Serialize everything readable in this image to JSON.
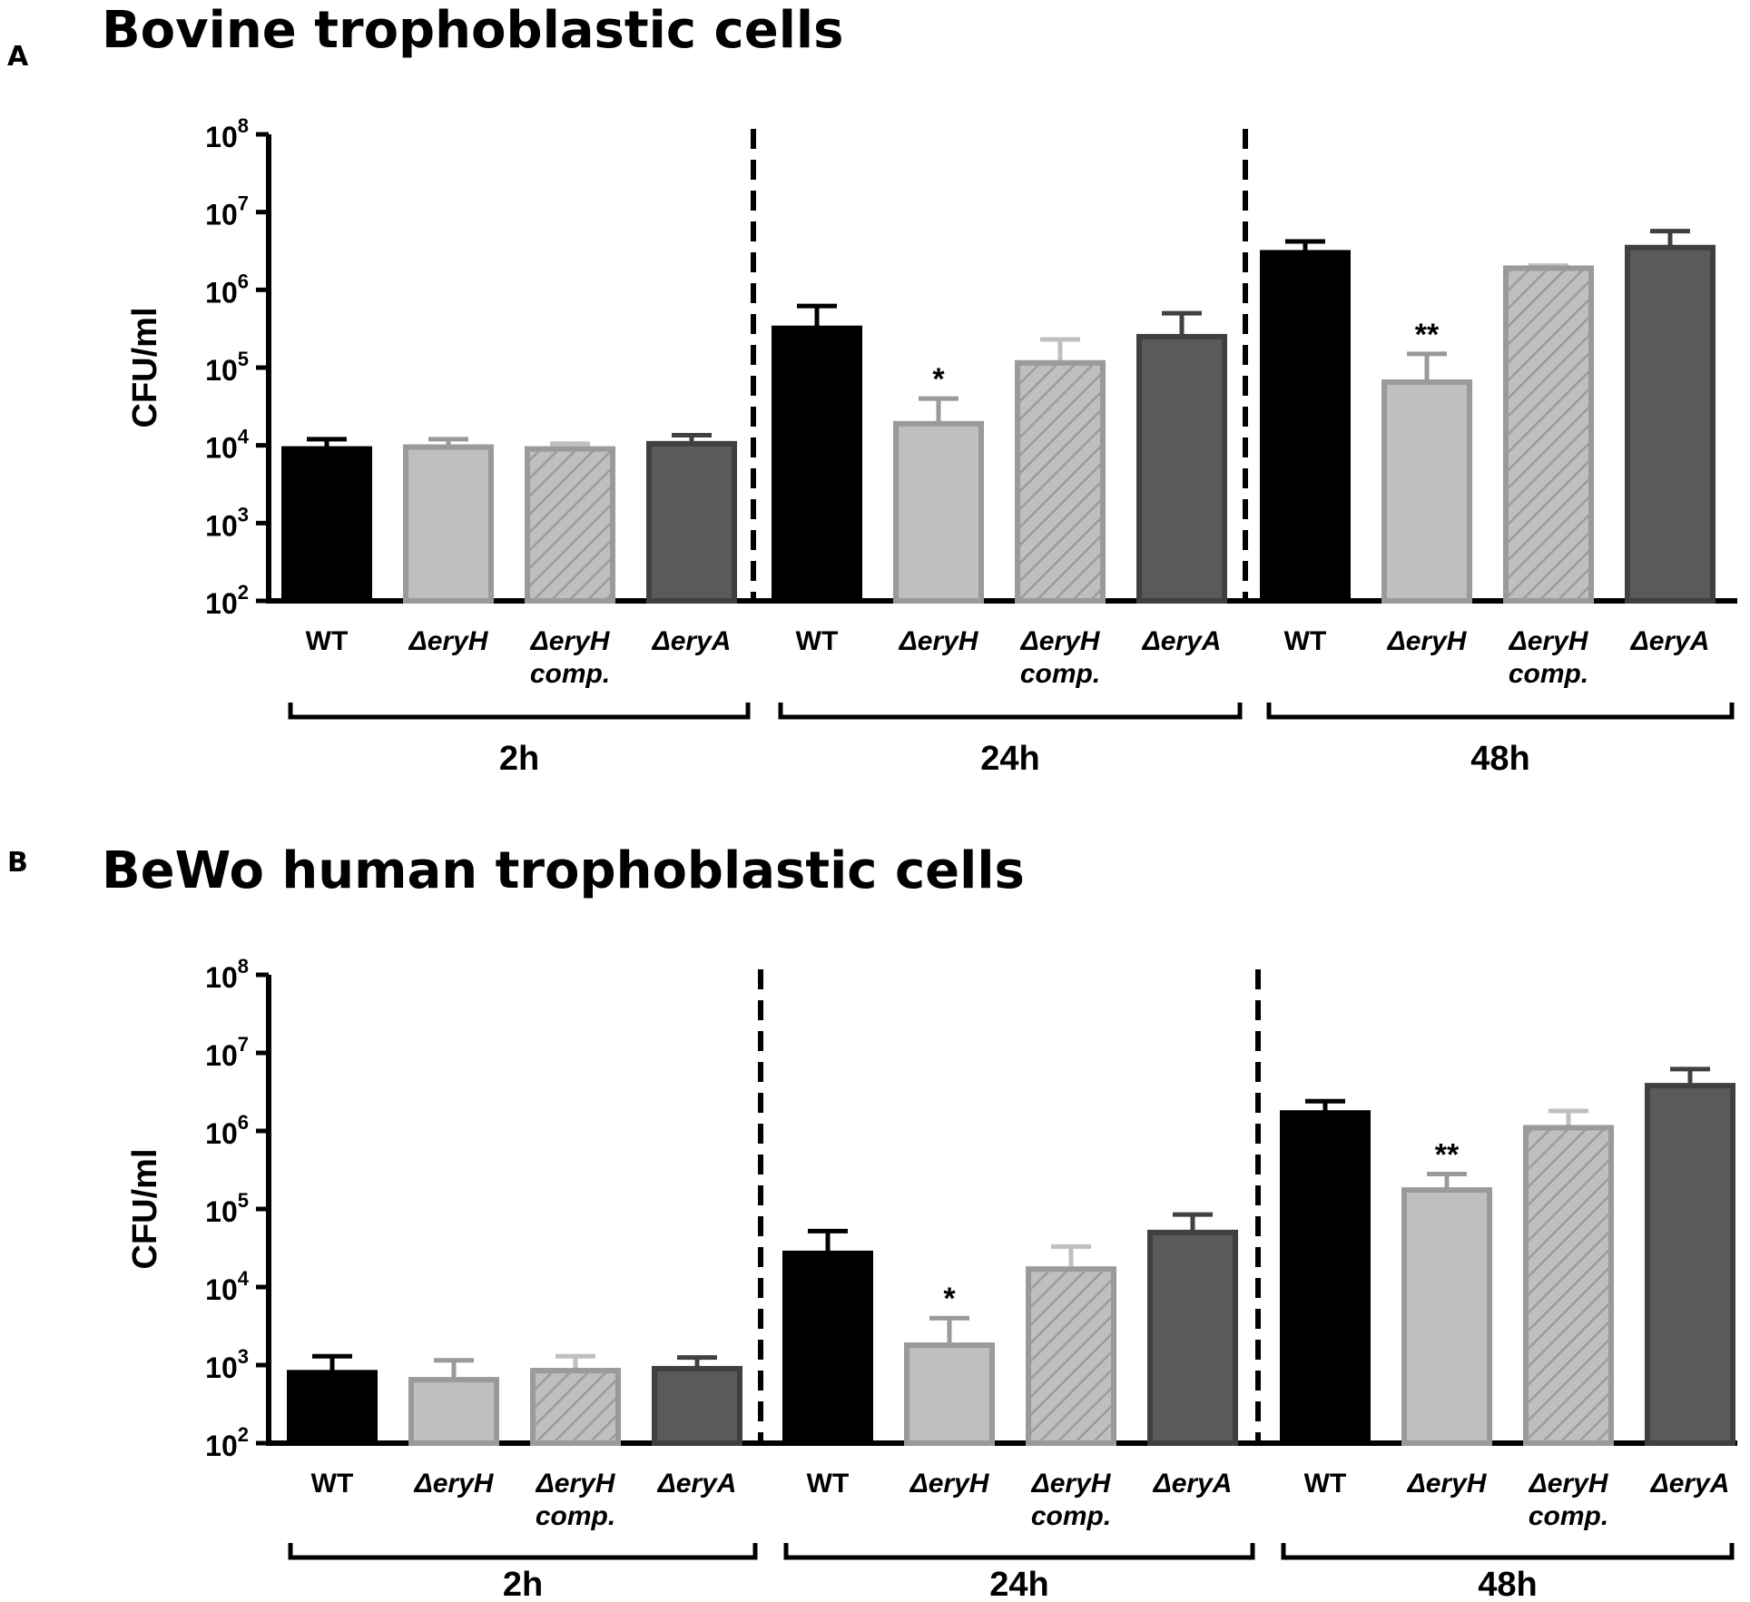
{
  "colors": {
    "WT": "#000000",
    "dH": "#bfbfbf",
    "dHe": "#9a9a9a",
    "dHc": "#bfbfbf",
    "dHcs": "#9c9c9c",
    "dA": "#5a5a5a",
    "dAe": "#404040"
  },
  "chart_data": [
    {
      "type": "bar",
      "panel_label": "A",
      "title": "Bovine trophoblastic cells",
      "ylabel": "CFU/ml",
      "yscale": "log",
      "ylim": [
        100,
        100000000
      ],
      "yticks": [
        {
          "base": "10",
          "exp": "8"
        },
        {
          "base": "10",
          "exp": "7"
        },
        {
          "base": "10",
          "exp": "6"
        },
        {
          "base": "10",
          "exp": "5"
        },
        {
          "base": "10",
          "exp": "4"
        },
        {
          "base": "10",
          "exp": "3"
        },
        {
          "base": "10",
          "exp": "2"
        }
      ],
      "categories": [
        {
          "line1": "WT",
          "line2": ""
        },
        {
          "line1": "ΔeryH",
          "line2": ""
        },
        {
          "line1": "ΔeryH",
          "line2": "comp."
        },
        {
          "line1": "ΔeryA",
          "line2": ""
        }
      ],
      "groups": [
        {
          "label": "2h",
          "series": [
            {
              "name": "WT",
              "value": 9000,
              "error": 12000,
              "sig": ""
            },
            {
              "name": "ΔeryH",
              "value": 9500,
              "error": 12000,
              "sig": ""
            },
            {
              "name": "ΔeryH comp.",
              "value": 9000,
              "error": 10500,
              "sig": ""
            },
            {
              "name": "ΔeryA",
              "value": 10500,
              "error": 13500,
              "sig": ""
            }
          ]
        },
        {
          "label": "24h",
          "series": [
            {
              "name": "WT",
              "value": 320000,
              "error": 620000,
              "sig": ""
            },
            {
              "name": "ΔeryH",
              "value": 19000,
              "error": 40000,
              "sig": "*"
            },
            {
              "name": "ΔeryH comp.",
              "value": 115000,
              "error": 230000,
              "sig": ""
            },
            {
              "name": "ΔeryA",
              "value": 250000,
              "error": 500000,
              "sig": ""
            }
          ]
        },
        {
          "label": "48h",
          "series": [
            {
              "name": "WT",
              "value": 3000000,
              "error": 4200000,
              "sig": ""
            },
            {
              "name": "ΔeryH",
              "value": 65000,
              "error": 150000,
              "sig": "**"
            },
            {
              "name": "ΔeryH comp.",
              "value": 1900000,
              "error": 2050000,
              "sig": ""
            },
            {
              "name": "ΔeryA",
              "value": 3500000,
              "error": 5700000,
              "sig": ""
            }
          ]
        }
      ]
    },
    {
      "type": "bar",
      "panel_label": "B",
      "title": "BeWo human trophoblastic cells",
      "ylabel": "CFU/ml",
      "yscale": "log",
      "ylim": [
        100,
        100000000
      ],
      "yticks": [
        {
          "base": "10",
          "exp": "8"
        },
        {
          "base": "10",
          "exp": "7"
        },
        {
          "base": "10",
          "exp": "6"
        },
        {
          "base": "10",
          "exp": "5"
        },
        {
          "base": "10",
          "exp": "4"
        },
        {
          "base": "10",
          "exp": "3"
        },
        {
          "base": "10",
          "exp": "2"
        }
      ],
      "categories": [
        {
          "line1": "WT",
          "line2": ""
        },
        {
          "line1": "ΔeryH",
          "line2": ""
        },
        {
          "line1": "ΔeryH",
          "line2": "comp."
        },
        {
          "line1": "ΔeryA",
          "line2": ""
        }
      ],
      "groups": [
        {
          "label": "2h",
          "series": [
            {
              "name": "WT",
              "value": 800,
              "error": 1300,
              "sig": ""
            },
            {
              "name": "ΔeryH",
              "value": 650,
              "error": 1150,
              "sig": ""
            },
            {
              "name": "ΔeryH comp.",
              "value": 850,
              "error": 1300,
              "sig": ""
            },
            {
              "name": "ΔeryA",
              "value": 900,
              "error": 1250,
              "sig": ""
            }
          ]
        },
        {
          "label": "24h",
          "series": [
            {
              "name": "WT",
              "value": 27000,
              "error": 52000,
              "sig": ""
            },
            {
              "name": "ΔeryH",
              "value": 1800,
              "error": 4000,
              "sig": "*"
            },
            {
              "name": "ΔeryH comp.",
              "value": 17000,
              "error": 33000,
              "sig": ""
            },
            {
              "name": "ΔeryA",
              "value": 50000,
              "error": 85000,
              "sig": ""
            }
          ]
        },
        {
          "label": "48h",
          "series": [
            {
              "name": "WT",
              "value": 1700000,
              "error": 2400000,
              "sig": ""
            },
            {
              "name": "ΔeryH",
              "value": 175000,
              "error": 280000,
              "sig": "**"
            },
            {
              "name": "ΔeryH comp.",
              "value": 1100000,
              "error": 1800000,
              "sig": ""
            },
            {
              "name": "ΔeryA",
              "value": 3800000,
              "error": 6200000,
              "sig": ""
            }
          ]
        }
      ]
    }
  ]
}
